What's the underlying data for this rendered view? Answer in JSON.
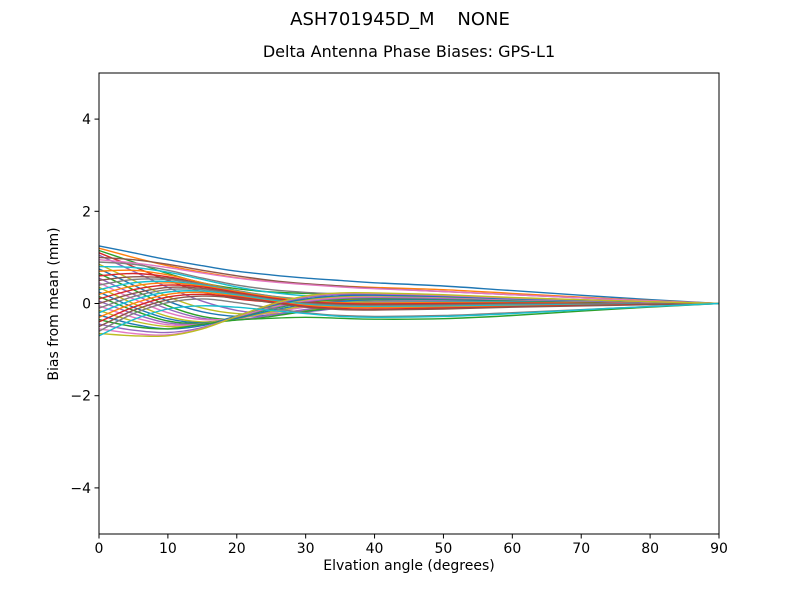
{
  "figure": {
    "suptitle": "ASH701945D_M    NONE"
  },
  "chart_data": {
    "type": "line",
    "title": "Delta Antenna Phase Biases: GPS-L1",
    "xlabel": "Elvation angle (degrees)",
    "ylabel": "Bias from mean (mm)",
    "xlim": [
      0,
      90
    ],
    "ylim": [
      -5,
      5
    ],
    "xticks": [
      0,
      10,
      20,
      30,
      40,
      50,
      60,
      70,
      80,
      90
    ],
    "yticks": [
      -4,
      -2,
      0,
      2,
      4
    ],
    "grid": false,
    "legend": "none",
    "x": [
      0,
      5,
      10,
      15,
      20,
      25,
      30,
      35,
      40,
      50,
      60,
      75,
      90
    ],
    "palette": [
      "#1f77b4",
      "#ff7f0e",
      "#2ca02c",
      "#d62728",
      "#9467bd",
      "#8c564b",
      "#e377c2",
      "#7f7f7f",
      "#bcbd22",
      "#17becf"
    ],
    "series": [
      [
        1.25,
        1.1,
        0.95,
        0.82,
        0.7,
        0.62,
        0.55,
        0.5,
        0.45,
        0.38,
        0.28,
        0.13,
        0.0
      ],
      [
        1.2,
        1.0,
        0.82,
        0.68,
        0.56,
        0.48,
        0.42,
        0.38,
        0.35,
        0.3,
        0.22,
        0.1,
        0.0
      ],
      [
        1.15,
        0.9,
        0.65,
        0.45,
        0.32,
        0.25,
        0.22,
        0.2,
        0.18,
        0.14,
        0.1,
        0.05,
        0.0
      ],
      [
        1.1,
        0.8,
        0.5,
        0.25,
        0.1,
        0.04,
        0.05,
        0.08,
        0.1,
        0.1,
        0.08,
        0.04,
        0.0
      ],
      [
        1.05,
        0.7,
        0.35,
        0.05,
        -0.15,
        -0.22,
        -0.18,
        -0.1,
        -0.04,
        0.02,
        0.04,
        0.02,
        0.0
      ],
      [
        1.0,
        0.95,
        0.85,
        0.72,
        0.6,
        0.5,
        0.43,
        0.38,
        0.33,
        0.26,
        0.19,
        0.09,
        0.0
      ],
      [
        0.95,
        0.88,
        0.78,
        0.66,
        0.55,
        0.47,
        0.41,
        0.36,
        0.32,
        0.26,
        0.19,
        0.09,
        0.0
      ],
      [
        0.9,
        0.85,
        0.72,
        0.55,
        0.4,
        0.3,
        0.24,
        0.21,
        0.19,
        0.15,
        0.11,
        0.05,
        0.0
      ],
      [
        0.85,
        0.5,
        0.15,
        -0.1,
        -0.22,
        -0.22,
        -0.15,
        -0.07,
        -0.02,
        0.03,
        0.04,
        0.02,
        0.0
      ],
      [
        0.8,
        0.78,
        0.68,
        0.52,
        0.36,
        0.24,
        0.17,
        0.14,
        0.13,
        0.11,
        0.08,
        0.04,
        0.0
      ],
      [
        0.75,
        0.4,
        0.05,
        -0.18,
        -0.28,
        -0.25,
        -0.17,
        -0.09,
        -0.03,
        0.02,
        0.03,
        0.01,
        0.0
      ],
      [
        0.7,
        0.72,
        0.62,
        0.45,
        0.28,
        0.16,
        0.1,
        0.09,
        0.1,
        0.1,
        0.08,
        0.04,
        0.0
      ],
      [
        0.65,
        0.3,
        -0.05,
        -0.28,
        -0.35,
        -0.28,
        -0.17,
        -0.08,
        -0.02,
        0.02,
        0.02,
        0.01,
        0.0
      ],
      [
        0.6,
        0.65,
        0.58,
        0.42,
        0.25,
        0.12,
        0.05,
        0.04,
        0.05,
        0.07,
        0.06,
        0.03,
        0.0
      ],
      [
        0.55,
        0.2,
        -0.12,
        -0.32,
        -0.35,
        -0.25,
        -0.13,
        -0.04,
        0.01,
        0.04,
        0.04,
        0.02,
        0.0
      ],
      [
        0.5,
        0.58,
        0.55,
        0.42,
        0.27,
        0.15,
        0.08,
        0.05,
        0.05,
        0.06,
        0.05,
        0.02,
        0.0
      ],
      [
        0.45,
        0.1,
        -0.2,
        -0.35,
        -0.32,
        -0.2,
        -0.08,
        0.0,
        0.04,
        0.06,
        0.05,
        0.02,
        0.0
      ],
      [
        0.4,
        0.52,
        0.52,
        0.42,
        0.28,
        0.16,
        0.08,
        0.04,
        0.03,
        0.04,
        0.04,
        0.02,
        0.0
      ],
      [
        0.35,
        0.0,
        -0.28,
        -0.4,
        -0.33,
        -0.18,
        -0.05,
        0.03,
        0.07,
        0.08,
        0.06,
        0.03,
        0.0
      ],
      [
        0.3,
        0.45,
        0.48,
        0.4,
        0.27,
        0.15,
        0.07,
        0.03,
        0.02,
        0.03,
        0.03,
        0.01,
        0.0
      ],
      [
        0.25,
        -0.08,
        -0.33,
        -0.42,
        -0.32,
        -0.15,
        -0.02,
        0.05,
        0.08,
        0.08,
        0.06,
        0.03,
        0.0
      ],
      [
        0.2,
        0.38,
        0.45,
        0.38,
        0.26,
        0.14,
        0.06,
        0.02,
        0.01,
        0.02,
        0.02,
        0.01,
        0.0
      ],
      [
        0.15,
        -0.15,
        -0.38,
        -0.43,
        -0.3,
        -0.12,
        0.02,
        0.09,
        0.11,
        0.1,
        0.07,
        0.03,
        0.0
      ],
      [
        0.1,
        0.3,
        0.4,
        0.36,
        0.24,
        0.12,
        0.04,
        0.0,
        -0.01,
        0.0,
        0.01,
        0.0,
        0.0
      ],
      [
        0.05,
        -0.22,
        -0.42,
        -0.44,
        -0.29,
        -0.1,
        0.04,
        0.11,
        0.13,
        0.11,
        0.08,
        0.04,
        0.0
      ],
      [
        0.0,
        0.22,
        0.35,
        0.33,
        0.22,
        0.1,
        0.02,
        -0.02,
        -0.03,
        -0.02,
        0.0,
        0.0,
        0.0
      ],
      [
        -0.05,
        -0.3,
        -0.46,
        -0.45,
        -0.28,
        -0.08,
        0.06,
        0.13,
        0.15,
        0.13,
        0.09,
        0.04,
        0.0
      ],
      [
        -0.1,
        0.15,
        0.3,
        0.3,
        0.2,
        0.09,
        0.0,
        -0.04,
        -0.05,
        -0.04,
        -0.02,
        -0.01,
        0.0
      ],
      [
        -0.15,
        -0.38,
        -0.5,
        -0.46,
        -0.27,
        -0.06,
        0.08,
        0.15,
        0.17,
        0.14,
        0.1,
        0.05,
        0.0
      ],
      [
        -0.2,
        0.08,
        0.25,
        0.27,
        0.18,
        0.07,
        -0.02,
        -0.06,
        -0.07,
        -0.06,
        -0.04,
        -0.02,
        0.0
      ],
      [
        -0.25,
        -0.45,
        -0.55,
        -0.48,
        -0.27,
        -0.05,
        0.1,
        0.17,
        0.18,
        0.15,
        0.1,
        0.05,
        0.0
      ],
      [
        -0.3,
        0.0,
        0.2,
        0.24,
        0.16,
        0.05,
        -0.04,
        -0.08,
        -0.09,
        -0.08,
        -0.06,
        -0.03,
        0.0
      ],
      [
        -0.35,
        -0.5,
        -0.55,
        -0.45,
        -0.36,
        -0.32,
        -0.3,
        -0.32,
        -0.34,
        -0.33,
        -0.26,
        -0.12,
        0.0
      ],
      [
        -0.4,
        -0.08,
        0.14,
        0.2,
        0.14,
        0.04,
        -0.06,
        -0.11,
        -0.12,
        -0.1,
        -0.07,
        -0.03,
        0.0
      ],
      [
        -0.45,
        -0.58,
        -0.63,
        -0.52,
        -0.28,
        -0.03,
        0.13,
        0.2,
        0.21,
        0.17,
        0.12,
        0.06,
        0.0
      ],
      [
        -0.5,
        -0.15,
        0.08,
        0.16,
        0.12,
        0.02,
        -0.08,
        -0.13,
        -0.14,
        -0.12,
        -0.08,
        -0.04,
        0.0
      ],
      [
        -0.55,
        -0.65,
        -0.68,
        -0.54,
        -0.28,
        -0.02,
        0.15,
        0.22,
        0.22,
        0.18,
        0.12,
        0.06,
        0.0
      ],
      [
        -0.6,
        -0.22,
        0.02,
        0.1,
        0.02,
        -0.1,
        -0.2,
        -0.26,
        -0.28,
        -0.26,
        -0.2,
        -0.1,
        0.0
      ],
      [
        -0.65,
        -0.7,
        -0.7,
        -0.55,
        -0.28,
        -0.02,
        0.16,
        0.23,
        0.23,
        0.19,
        0.13,
        0.06,
        0.0
      ],
      [
        -0.7,
        -0.35,
        -0.12,
        -0.05,
        -0.08,
        -0.15,
        -0.22,
        -0.28,
        -0.3,
        -0.28,
        -0.22,
        -0.1,
        0.0
      ]
    ],
    "frame_color": "#000000",
    "background": "#ffffff"
  }
}
